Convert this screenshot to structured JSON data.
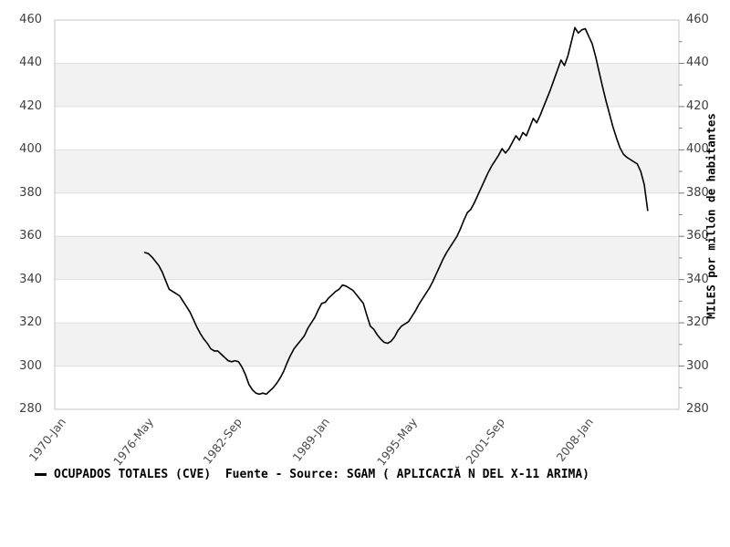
{
  "chart_data": {
    "type": "line",
    "title": "",
    "right_axis_title": "MILES por millón de habitantes",
    "legend": {
      "marker": "line-sample",
      "label": "OCUPADOS TOTALES (CVE)  Fuente - Source: SGAM ( APLICACIĂ N DEL X-11 ARIMA)"
    },
    "y_domain": [
      280,
      460
    ],
    "y_tick_step": 20,
    "y_minor_tick_step": 10,
    "y_tick_labels": [
      "280",
      "300",
      "320",
      "340",
      "360",
      "380",
      "400",
      "420",
      "440",
      "460"
    ],
    "x_domain_months_from_1970": [
      0,
      540
    ],
    "x_tick_months": [
      0,
      76,
      152,
      228,
      304,
      380,
      456
    ],
    "x_tick_labels": [
      "1970-Jan",
      "1976-May",
      "1982-Sep",
      "1989-Jan",
      "1995-May",
      "2001-Sep",
      "2008-Jan"
    ],
    "band_ranges_gray": [
      [
        300,
        320
      ],
      [
        340,
        360
      ],
      [
        380,
        400
      ],
      [
        420,
        440
      ]
    ],
    "colors": {
      "band": "#f2f2f2",
      "grid_line": "#e0e0e0",
      "plot_border": "#c6c6c6",
      "tick": "#7a7a7a",
      "axis_text": "#3f3f3f",
      "series_line": "#000000"
    },
    "series": [
      {
        "name": "OCUPADOS TOTALES (CVE)",
        "frequency": "quarterly",
        "start": "1976-Q3",
        "start_month_from_1970": 78,
        "step_months": 3,
        "values": [
          352.5,
          352,
          350.5,
          348.5,
          346.5,
          343.5,
          339.5,
          335.5,
          334.5,
          333.5,
          332.5,
          330,
          327.5,
          325,
          321.5,
          318,
          315,
          312.5,
          310.5,
          308,
          307,
          307,
          305.5,
          304,
          302.5,
          302,
          302.5,
          302,
          299.5,
          296,
          291.5,
          289,
          287.5,
          287,
          287.5,
          287,
          288.5,
          290,
          292,
          294.5,
          297.5,
          301.5,
          305,
          308,
          310,
          312,
          314,
          317.5,
          320,
          322.5,
          326,
          329,
          329.5,
          331.5,
          333,
          334.5,
          335.5,
          337.5,
          337,
          336,
          335,
          333,
          331,
          329,
          323.5,
          318.5,
          317,
          314.5,
          312.5,
          311,
          310.5,
          311.5,
          313.5,
          316.5,
          318.5,
          319.5,
          320.5,
          323,
          325.5,
          328.5,
          331,
          333.5,
          336,
          339,
          342.5,
          346,
          349.5,
          352.5,
          355,
          357.5,
          360,
          363.5,
          367.5,
          371,
          372.5,
          375.5,
          379,
          382.5,
          386,
          389.5,
          392.5,
          395,
          397.5,
          400.5,
          398.5,
          400.5,
          403.5,
          406.5,
          404.5,
          408,
          406.5,
          410.5,
          414.5,
          412.5,
          416,
          420,
          424,
          428,
          432.5,
          437,
          441.5,
          439,
          443.5,
          450,
          456.5,
          454,
          455.5,
          456,
          452.5,
          449,
          443,
          436,
          429,
          422.5,
          416.5,
          410.5,
          405.5,
          401,
          398,
          396.5,
          395.5,
          394.5,
          393.5,
          390,
          384,
          372
        ]
      }
    ]
  },
  "layout_labels": {
    "note": ""
  }
}
